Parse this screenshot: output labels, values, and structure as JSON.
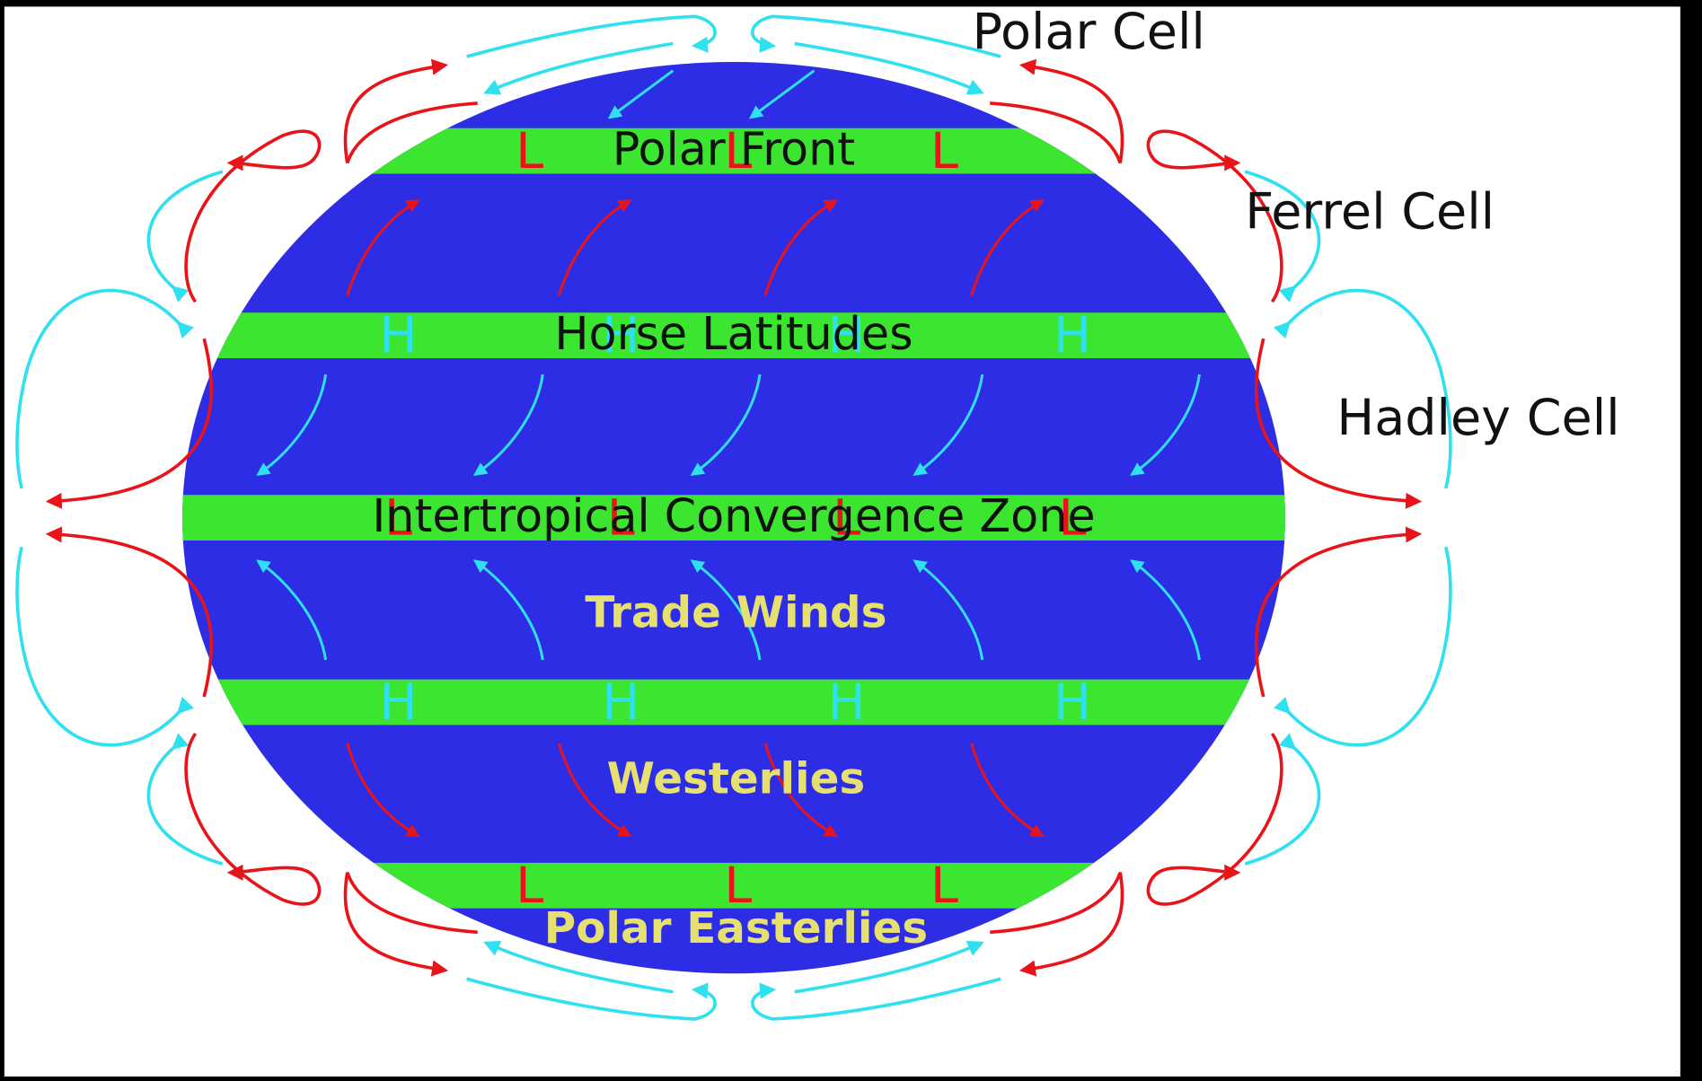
{
  "cells": [
    "Polar Cell",
    "Ferrel Cell",
    "Hadley Cell"
  ],
  "bands": [
    {
      "label": "Polar Front",
      "markers": [
        "L",
        "L",
        "L"
      ]
    },
    {
      "label": "Horse Latitudes",
      "markers": [
        "H",
        "H",
        "H",
        "H"
      ]
    },
    {
      "label": "Intertropical Convergence Zone",
      "markers": [
        "L",
        "L",
        "L",
        "L"
      ]
    },
    {
      "markers": [
        "H",
        "H",
        "H",
        "H"
      ]
    },
    {
      "markers": [
        "L",
        "L",
        "L"
      ]
    }
  ],
  "winds": [
    "Trade Winds",
    "Westerlies",
    "Polar Easterlies"
  ]
}
